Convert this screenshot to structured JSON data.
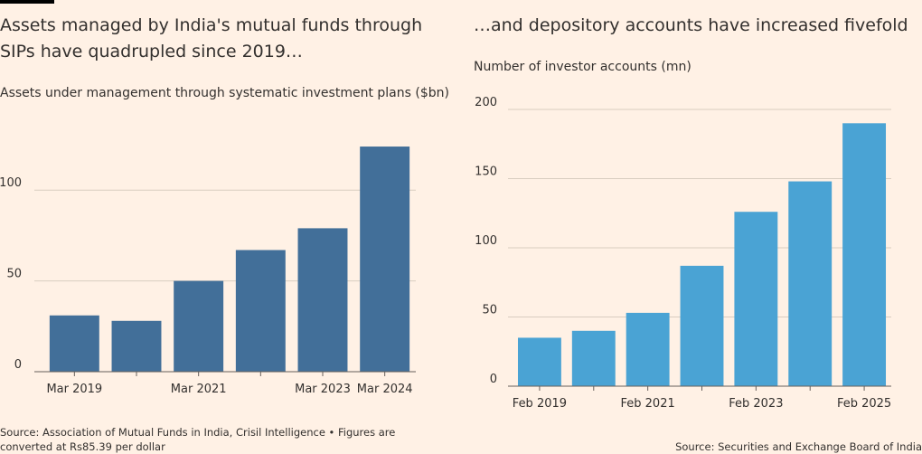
{
  "left": {
    "title": "Assets managed by India's mutual funds through SIPs have quadrupled since 2019…",
    "subtitle": "Assets under management through systematic investment plans ($bn)",
    "source": "Source: Association of Mutual Funds in India, Crisil Intelligence • Figures are converted at Rs85.39 per dollar"
  },
  "right": {
    "title": "…and depository accounts have increased fivefold",
    "subtitle": "Number of investor accounts (mn)",
    "source": "Source: Securities and Exchange Board of India"
  },
  "chart_data": [
    {
      "type": "bar",
      "title": "Assets managed by India's mutual funds through SIPs have quadrupled since 2019…",
      "ylabel": "Assets under management through systematic investment plans ($bn)",
      "categories": [
        "Mar 2019",
        "Mar 2020",
        "Mar 2021",
        "Mar 2022",
        "Mar 2023",
        "Mar 2024"
      ],
      "tick_labels": [
        "Mar 2019",
        "",
        "Mar 2021",
        "",
        "Mar 2023",
        "Mar 2024"
      ],
      "values": [
        31,
        28,
        50,
        67,
        79,
        124
      ],
      "ylim": [
        0,
        130
      ],
      "yticks": [
        0,
        50,
        100
      ],
      "color": "#426f99",
      "grid": true
    },
    {
      "type": "bar",
      "title": "…and depository accounts have increased fivefold",
      "ylabel": "Number of investor accounts (mn)",
      "categories": [
        "Feb 2019",
        "Feb 2020",
        "Feb 2021",
        "Feb 2022",
        "Feb 2023",
        "Feb 2024",
        "Feb 2025"
      ],
      "tick_labels": [
        "Feb 2019",
        "",
        "Feb 2021",
        "",
        "Feb 2023",
        "",
        "Feb 2025"
      ],
      "values": [
        35,
        40,
        53,
        87,
        126,
        148,
        190
      ],
      "ylim": [
        0,
        200
      ],
      "yticks": [
        0,
        50,
        100,
        150,
        200
      ],
      "color": "#4aa3d4",
      "grid": true
    }
  ]
}
